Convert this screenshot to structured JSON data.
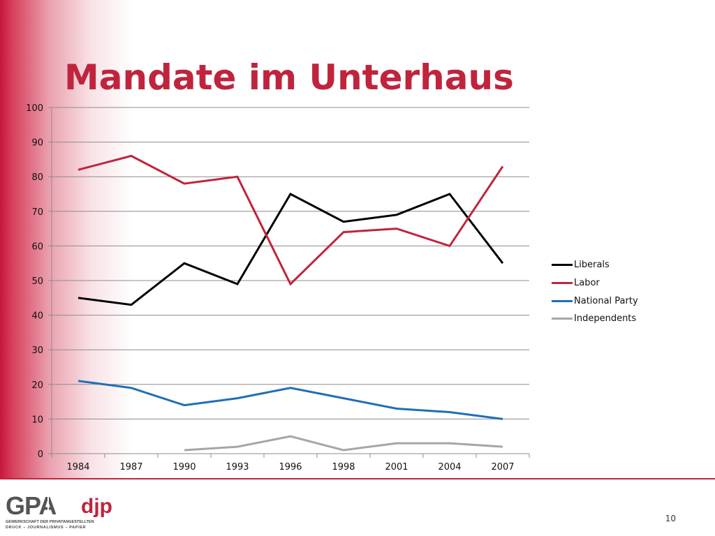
{
  "slide": {
    "title": "Mandate im Unterhaus",
    "page_number": "10",
    "logo": {
      "text_main": "GPA",
      "text_secondary": "djp",
      "subtitle_line1": "GEWERKSCHAFT DER PRIVATANGESTELLTEN",
      "subtitle_line2": "DRUCK – JOURNALISMUS – PAPIER"
    },
    "colors": {
      "accent": "#c0243d",
      "gradient_start": "#c8163a"
    }
  },
  "chart_data": {
    "type": "line",
    "title": "",
    "xlabel": "",
    "ylabel": "",
    "categories": [
      "1984",
      "1987",
      "1990",
      "1993",
      "1996",
      "1998",
      "2001",
      "2004",
      "2007"
    ],
    "ylim": [
      0,
      100
    ],
    "yticks": [
      0,
      10,
      20,
      30,
      40,
      50,
      60,
      70,
      80,
      90,
      100
    ],
    "grid": true,
    "legend_position": "right",
    "series": [
      {
        "name": "Liberals",
        "color": "#000000",
        "values": [
          45,
          43,
          55,
          49,
          75,
          67,
          69,
          75,
          55
        ]
      },
      {
        "name": "Labor",
        "color": "#c0243d",
        "values": [
          82,
          86,
          78,
          80,
          49,
          64,
          65,
          60,
          83
        ]
      },
      {
        "name": "National Party",
        "color": "#1f6fb5",
        "values": [
          21,
          19,
          14,
          16,
          19,
          16,
          13,
          12,
          10
        ]
      },
      {
        "name": "Independents",
        "color": "#a6a6a6",
        "values": [
          null,
          null,
          1,
          2,
          5,
          1,
          3,
          3,
          2
        ]
      }
    ]
  }
}
